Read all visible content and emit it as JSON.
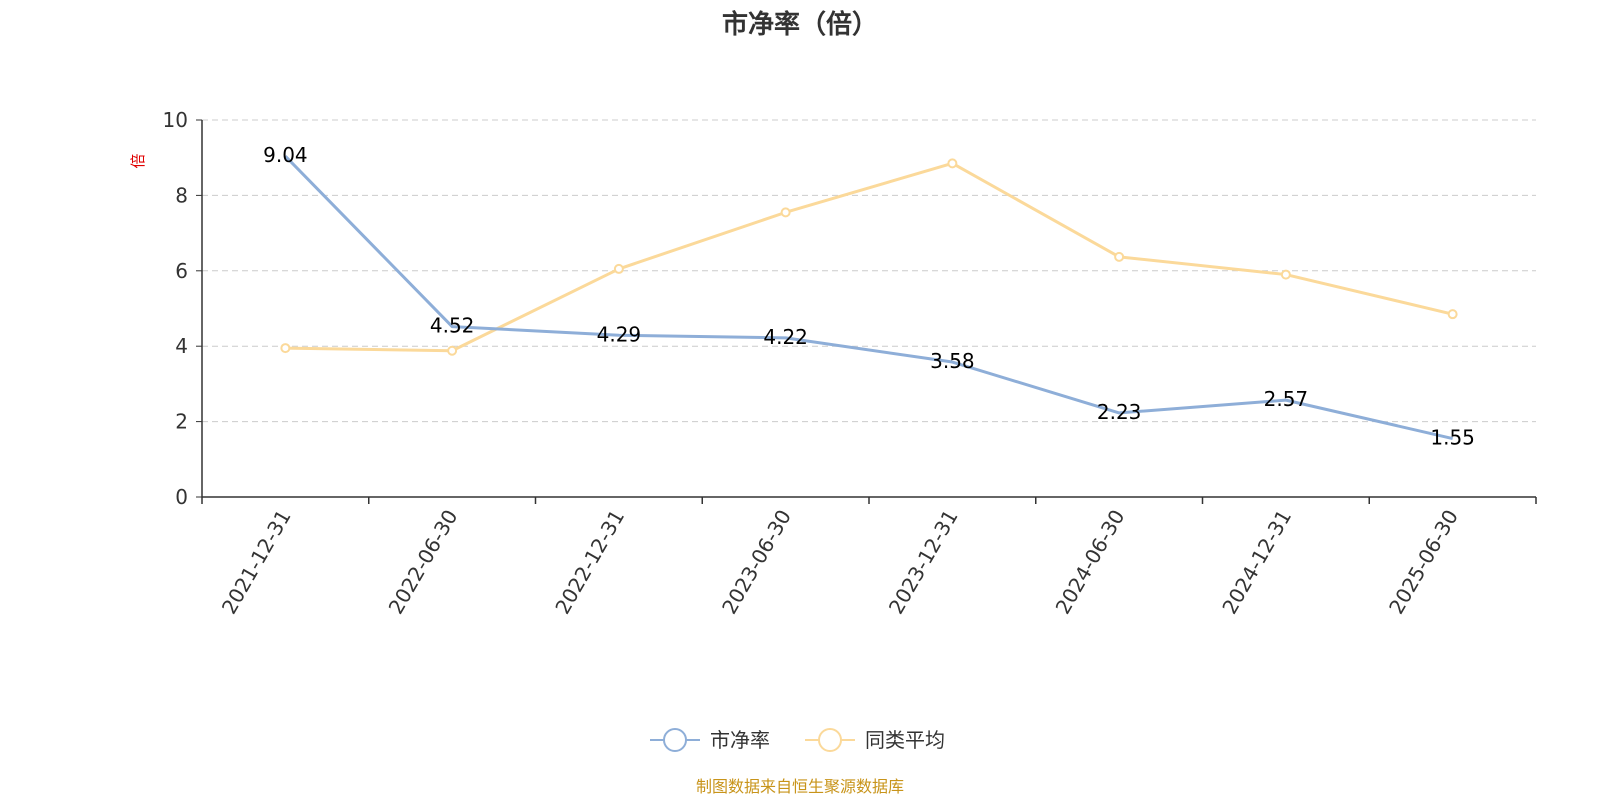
{
  "chart_data": {
    "type": "line",
    "title": "市净率（倍）",
    "ylabel": "倍",
    "xlabel": "",
    "categories": [
      "2021-12-31",
      "2022-06-30",
      "2022-12-31",
      "2023-06-30",
      "2023-12-31",
      "2024-06-30",
      "2024-12-31",
      "2025-06-30"
    ],
    "ylim": [
      0,
      10
    ],
    "yticks": [
      0,
      2,
      4,
      6,
      8,
      10
    ],
    "grid": true,
    "legend_position": "bottom",
    "series": [
      {
        "name": "市净率",
        "color": "#8eaed8",
        "values": [
          9.04,
          4.52,
          4.29,
          4.22,
          3.58,
          2.23,
          2.57,
          1.55
        ],
        "labels": [
          "9.04",
          "4.52",
          "4.29",
          "4.22",
          "3.58",
          "2.23",
          "2.57",
          "1.55"
        ]
      },
      {
        "name": "同类平均",
        "color": "#fbd99a",
        "values": [
          3.95,
          3.88,
          6.05,
          7.55,
          8.85,
          6.37,
          5.9,
          4.85
        ]
      }
    ]
  },
  "colors": {
    "unit_label": "#e00000",
    "source": "#c8941a",
    "grid": "#cccccc",
    "axis": "#333333"
  },
  "source_note": "制图数据来自恒生聚源数据库"
}
